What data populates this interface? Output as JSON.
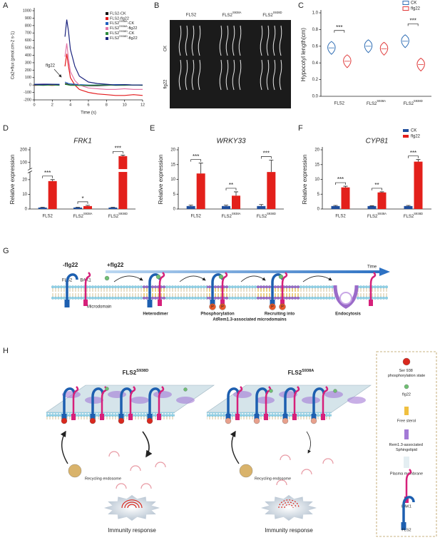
{
  "panel_labels": [
    "A",
    "B",
    "C",
    "D",
    "E",
    "F",
    "G",
    "H"
  ],
  "chart_data": [
    {
      "type": "line",
      "x_label": "Time (s)",
      "y_label": "Ca2+flux (pmol.cm-2 s-1)",
      "annotation": "flg22",
      "x": [
        0,
        1,
        2,
        2.8,
        3,
        3.4,
        3.6,
        3.8,
        4,
        4.5,
        5,
        6,
        7,
        8,
        9,
        10,
        11,
        12
      ],
      "series": [
        {
          "name": "FLS2-CK",
          "color": "#111111",
          "values": [
            0,
            5,
            0,
            5,
            null,
            20,
            15,
            5,
            0,
            0,
            -5,
            -10,
            -10,
            -5,
            0,
            0,
            0,
            0
          ]
        },
        {
          "name": "FLS2-flg22",
          "color": "#e41a1c",
          "values": [
            -5,
            0,
            -5,
            0,
            null,
            250,
            420,
            250,
            100,
            0,
            -60,
            -100,
            -120,
            -130,
            -140,
            -140,
            -130,
            -140
          ]
        },
        {
          "name": "FLS2S938A-CK",
          "color": "#1f5fbf",
          "values": [
            10,
            15,
            10,
            10,
            null,
            40,
            30,
            20,
            15,
            10,
            5,
            0,
            0,
            0,
            5,
            5,
            0,
            0
          ]
        },
        {
          "name": "FLS2S938A-flg22",
          "color": "#e377a8",
          "values": [
            5,
            10,
            5,
            5,
            null,
            380,
            560,
            350,
            180,
            60,
            0,
            -40,
            -50,
            -60,
            -60,
            -50,
            -60,
            -60
          ]
        },
        {
          "name": "FLS2S938D-CK",
          "color": "#2e8b3c",
          "values": [
            0,
            -5,
            0,
            -5,
            null,
            10,
            5,
            0,
            -5,
            -5,
            -5,
            -5,
            0,
            0,
            -5,
            -5,
            0,
            -5
          ]
        },
        {
          "name": "FLS2S938D-flg22",
          "color": "#1a237e",
          "values": [
            5,
            5,
            10,
            5,
            null,
            650,
            880,
            720,
            480,
            250,
            120,
            40,
            20,
            10,
            0,
            5,
            0,
            0
          ]
        }
      ],
      "xlim": [
        0,
        12
      ],
      "xticks": [
        0,
        2,
        4,
        6,
        8,
        10,
        12
      ],
      "ylim": [
        -200,
        1000
      ],
      "yticks": [
        -200,
        -100,
        0,
        100,
        200,
        300,
        400,
        500,
        600,
        700,
        800,
        900,
        1000
      ],
      "legend_corner": "upper right"
    },
    {
      "type": "violin",
      "y_label": "Hypocotyl length(cm)",
      "categories": [
        "FLS2",
        "FLS2S938A",
        "FLS2S938D"
      ],
      "series": [
        {
          "name": "CK",
          "color": "#2e6db4",
          "values": [
            0.58,
            0.6,
            0.66
          ]
        },
        {
          "name": "flg22",
          "color": "#e03a3a",
          "values": [
            0.42,
            0.57,
            0.38
          ]
        }
      ],
      "ylim": [
        0,
        1
      ],
      "yticks": [
        {
          "value": 0,
          "label": "0.0"
        },
        {
          "value": 0.2,
          "label": "0.2"
        },
        {
          "value": 0.4,
          "label": "0.4"
        },
        {
          "value": 0.6,
          "label": "0.6"
        },
        {
          "value": 0.8,
          "label": "0.8"
        },
        {
          "value": 1,
          "label": "1.0"
        }
      ],
      "significance": [
        "***",
        null,
        "***"
      ],
      "legend_corner": "upper right"
    },
    {
      "type": "bar",
      "title": "FRK1",
      "y_label": "Relative expression",
      "categories": [
        "FLS2",
        "FLS2S938A",
        "FLS2S938D"
      ],
      "series": [
        {
          "color": "#1f4e9c",
          "values": [
            1,
            1,
            1
          ],
          "errors": [
            0.2,
            0.2,
            0.2
          ]
        },
        {
          "color": "#e3201b",
          "values": [
            19,
            2,
            150
          ],
          "errors": [
            1,
            0.5,
            8
          ]
        }
      ],
      "ylim": [
        0,
        200
      ],
      "yticks": [
        0,
        10,
        20,
        100,
        200
      ],
      "axis_break": [
        25,
        50
      ],
      "significance": [
        "***",
        "*",
        "***"
      ]
    },
    {
      "type": "bar",
      "title": "WRKY33",
      "y_label": "Relative expression",
      "categories": [
        "FLS2",
        "FLS2S938A",
        "FLS2S938D"
      ],
      "series": [
        {
          "color": "#1f4e9c",
          "values": [
            1,
            1,
            1
          ],
          "errors": [
            0.3,
            0.3,
            0.5
          ]
        },
        {
          "color": "#e3201b",
          "values": [
            12,
            4.5,
            12.5
          ],
          "errors": [
            3.5,
            1.3,
            4
          ]
        }
      ],
      "ylim": [
        0,
        20
      ],
      "yticks": [
        0,
        5,
        10,
        15,
        20
      ],
      "significance": [
        "***",
        "**",
        "***"
      ]
    },
    {
      "type": "bar",
      "title": "CYP81",
      "y_label": "Relative expression",
      "categories": [
        "FLS2",
        "FLS2S938A",
        "FLS2S938D"
      ],
      "series": [
        {
          "name": "CK",
          "color": "#1f4e9c",
          "values": [
            1,
            1,
            1
          ],
          "errors": [
            0.2,
            0.1,
            0.2
          ]
        },
        {
          "name": "flg22",
          "color": "#e3201b",
          "values": [
            7.3,
            5.6,
            16
          ],
          "errors": [
            0.4,
            0.2,
            0.7
          ]
        }
      ],
      "ylim": [
        0,
        20
      ],
      "yticks": [
        0,
        5,
        10,
        15,
        20
      ],
      "significance": [
        "***",
        "**",
        "***"
      ],
      "legend_corner": "upper right"
    }
  ],
  "photo": {
    "columns": [
      "FLS2",
      "FLS2S938A",
      "FLS2S938D"
    ],
    "rows": [
      "CK",
      "flg22"
    ]
  },
  "diagram_g": {
    "before": "-flg22",
    "after": "+flg22",
    "arrow_label": "Time",
    "fls2": "FLS2",
    "bak1": "BAK1",
    "microdomain": "Microdomain",
    "heterodimer": "Heterodimer",
    "phosphorylation": "Phosphorylation",
    "recruiting": "Recruiting  into",
    "microdomains": "AtRem1.3-associated microdomains",
    "endocytosis": "Endocytosis",
    "phospho": "P"
  },
  "diagram_h": {
    "left_title": "FLS2S938D",
    "right_title": "FLS2S938A",
    "endosome": "Recycling endosome",
    "response": "Immunity response",
    "legend": [
      "Ser 938 phosphorylation state",
      "flg22",
      "Free sterol",
      "Rem1.3-associated Sphingolipid",
      "Plasma membrane",
      "BAK1",
      "FLS2"
    ]
  }
}
